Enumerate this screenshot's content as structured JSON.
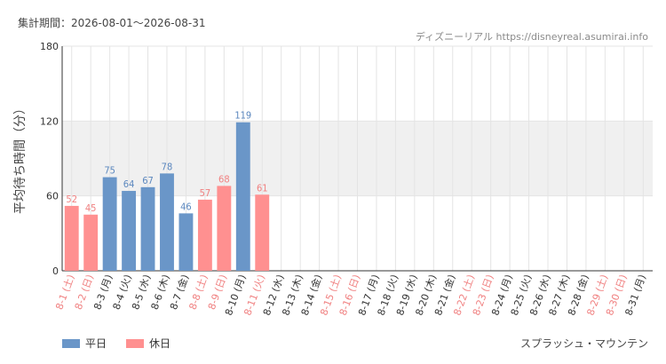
{
  "period_label": "集計期間：2026-08-01～2026-08-31",
  "source_label": "ディズニーリアル https://disneyreal.asumirai.info",
  "attraction": "スプラッシュ・マウンテン",
  "legend": [
    {
      "name": "平日",
      "color": "#6a96c8"
    },
    {
      "name": "休日",
      "color": "#ff9090"
    }
  ],
  "colors": {
    "weekday": "#6a96c8",
    "holiday": "#ff9090",
    "weekday_text": "#5b87be",
    "holiday_text": "#f08080",
    "band": "#f0f0f0",
    "grid": "#e4e4e4"
  },
  "chart_data": {
    "type": "bar",
    "ylabel": "平均待ち時間（分）",
    "xlabel": "",
    "ylim": [
      0,
      180
    ],
    "yticks": [
      0,
      60,
      120,
      180
    ],
    "shaded_band": [
      60,
      120
    ],
    "grid": true,
    "legend_position": "bottom-left",
    "categories": [
      "8-1 (土)",
      "8-2 (日)",
      "8-3 (月)",
      "8-4 (火)",
      "8-5 (水)",
      "8-6 (木)",
      "8-7 (金)",
      "8-8 (土)",
      "8-9 (日)",
      "8-10 (月)",
      "8-11 (火)",
      "8-12 (水)",
      "8-13 (木)",
      "8-14 (金)",
      "8-15 (土)",
      "8-16 (日)",
      "8-17 (月)",
      "8-18 (火)",
      "8-19 (水)",
      "8-20 (木)",
      "8-21 (金)",
      "8-22 (土)",
      "8-23 (日)",
      "8-24 (月)",
      "8-25 (火)",
      "8-26 (水)",
      "8-27 (木)",
      "8-28 (金)",
      "8-29 (土)",
      "8-30 (日)",
      "8-31 (月)"
    ],
    "day_type": [
      "休日",
      "休日",
      "平日",
      "平日",
      "平日",
      "平日",
      "平日",
      "休日",
      "休日",
      "平日",
      "休日",
      "平日",
      "平日",
      "平日",
      "休日",
      "休日",
      "平日",
      "平日",
      "平日",
      "平日",
      "平日",
      "休日",
      "休日",
      "平日",
      "平日",
      "平日",
      "平日",
      "平日",
      "休日",
      "休日",
      "平日"
    ],
    "values": [
      52,
      45,
      75,
      64,
      67,
      78,
      46,
      57,
      68,
      119,
      61,
      null,
      null,
      null,
      null,
      null,
      null,
      null,
      null,
      null,
      null,
      null,
      null,
      null,
      null,
      null,
      null,
      null,
      null,
      null,
      null
    ]
  }
}
